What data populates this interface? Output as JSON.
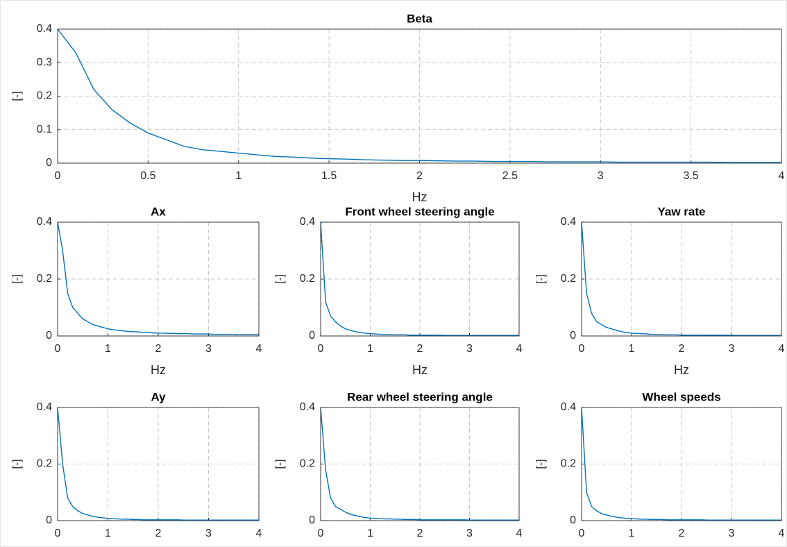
{
  "chart_data": [
    {
      "type": "line",
      "title": "Beta",
      "x_label": "Hz",
      "y_label": "[-]",
      "color": "#0072bd",
      "grid": true,
      "xlim": [
        0,
        4
      ],
      "ylim": [
        0,
        0.4
      ],
      "xticks": [
        0,
        0.5,
        1,
        1.5,
        2,
        2.5,
        3,
        3.5,
        4
      ],
      "yticks": [
        0,
        0.1,
        0.2,
        0.3,
        0.4
      ],
      "x": [
        0,
        0.1,
        0.2,
        0.3,
        0.4,
        0.5,
        0.6,
        0.7,
        0.8,
        0.9,
        1,
        1.1,
        1.2,
        1.3,
        1.4,
        1.5,
        1.6,
        1.7,
        1.8,
        1.9,
        2,
        2.1,
        2.2,
        2.3,
        2.4,
        2.5,
        2.6,
        2.7,
        2.8,
        2.9,
        3,
        3.1,
        3.2,
        3.3,
        3.4,
        3.5,
        3.6,
        3.7,
        3.8,
        3.9,
        4
      ],
      "values": [
        0.4,
        0.33,
        0.22,
        0.16,
        0.12,
        0.09,
        0.07,
        0.05,
        0.04,
        0.035,
        0.03,
        0.025,
        0.02,
        0.018,
        0.015,
        0.013,
        0.012,
        0.01,
        0.009,
        0.008,
        0.008,
        0.007,
        0.006,
        0.006,
        0.005,
        0.005,
        0.005,
        0.004,
        0.004,
        0.004,
        0.004,
        0.003,
        0.003,
        0.003,
        0.003,
        0.003,
        0.003,
        0.002,
        0.002,
        0.002,
        0.002
      ]
    },
    {
      "type": "line",
      "title": "Ax",
      "x_label": "Hz",
      "y_label": "[-]",
      "color": "#0072bd",
      "grid": true,
      "xlim": [
        0,
        4
      ],
      "ylim": [
        0,
        0.4
      ],
      "xticks": [
        0,
        1,
        2,
        3,
        4
      ],
      "yticks": [
        0,
        0.2,
        0.4
      ],
      "x": [
        0,
        0.1,
        0.2,
        0.3,
        0.4,
        0.5,
        0.6,
        0.7,
        0.8,
        0.9,
        1,
        1.1,
        1.2,
        1.3,
        1.4,
        1.5,
        1.6,
        1.7,
        1.8,
        1.9,
        2,
        2.1,
        2.2,
        2.3,
        2.4,
        2.5,
        2.6,
        2.7,
        2.8,
        2.9,
        3,
        3.1,
        3.2,
        3.3,
        3.4,
        3.5,
        3.6,
        3.7,
        3.8,
        3.9,
        4
      ],
      "values": [
        0.4,
        0.3,
        0.15,
        0.1,
        0.08,
        0.06,
        0.05,
        0.04,
        0.035,
        0.03,
        0.025,
        0.022,
        0.02,
        0.018,
        0.016,
        0.015,
        0.014,
        0.013,
        0.012,
        0.011,
        0.01,
        0.01,
        0.009,
        0.009,
        0.008,
        0.008,
        0.008,
        0.007,
        0.007,
        0.007,
        0.007,
        0.006,
        0.006,
        0.006,
        0.006,
        0.006,
        0.005,
        0.005,
        0.005,
        0.005,
        0.005
      ]
    },
    {
      "type": "line",
      "title": "Front wheel steering angle",
      "x_label": "Hz",
      "y_label": "[-]",
      "color": "#0072bd",
      "grid": true,
      "xlim": [
        0,
        4
      ],
      "ylim": [
        0,
        0.4
      ],
      "xticks": [
        0,
        1,
        2,
        3,
        4
      ],
      "yticks": [
        0,
        0.2,
        0.4
      ],
      "x": [
        0,
        0.1,
        0.2,
        0.3,
        0.4,
        0.5,
        0.6,
        0.7,
        0.8,
        0.9,
        1,
        1.1,
        1.2,
        1.3,
        1.4,
        1.5,
        1.6,
        1.7,
        1.8,
        1.9,
        2,
        2.1,
        2.2,
        2.3,
        2.4,
        2.5,
        2.6,
        2.7,
        2.8,
        2.9,
        3,
        3.1,
        3.2,
        3.3,
        3.4,
        3.5,
        3.6,
        3.7,
        3.8,
        3.9,
        4
      ],
      "values": [
        0.4,
        0.12,
        0.07,
        0.05,
        0.035,
        0.025,
        0.02,
        0.015,
        0.012,
        0.01,
        0.008,
        0.007,
        0.006,
        0.005,
        0.005,
        0.004,
        0.004,
        0.004,
        0.003,
        0.003,
        0.003,
        0.003,
        0.003,
        0.003,
        0.003,
        0.002,
        0.002,
        0.002,
        0.002,
        0.002,
        0.002,
        0.002,
        0.002,
        0.002,
        0.002,
        0.002,
        0.002,
        0.002,
        0.002,
        0.002,
        0.002
      ]
    },
    {
      "type": "line",
      "title": "Yaw rate",
      "x_label": "Hz",
      "y_label": "[-]",
      "color": "#0072bd",
      "grid": true,
      "xlim": [
        0,
        4
      ],
      "ylim": [
        0,
        0.4
      ],
      "xticks": [
        0,
        1,
        2,
        3,
        4
      ],
      "yticks": [
        0,
        0.2,
        0.4
      ],
      "x": [
        0,
        0.1,
        0.2,
        0.3,
        0.4,
        0.5,
        0.6,
        0.7,
        0.8,
        0.9,
        1,
        1.1,
        1.2,
        1.3,
        1.4,
        1.5,
        1.6,
        1.7,
        1.8,
        1.9,
        2,
        2.1,
        2.2,
        2.3,
        2.4,
        2.5,
        2.6,
        2.7,
        2.8,
        2.9,
        3,
        3.1,
        3.2,
        3.3,
        3.4,
        3.5,
        3.6,
        3.7,
        3.8,
        3.9,
        4
      ],
      "values": [
        0.4,
        0.15,
        0.08,
        0.05,
        0.04,
        0.03,
        0.025,
        0.02,
        0.015,
        0.012,
        0.01,
        0.009,
        0.008,
        0.007,
        0.006,
        0.005,
        0.005,
        0.004,
        0.004,
        0.004,
        0.003,
        0.003,
        0.003,
        0.003,
        0.003,
        0.003,
        0.003,
        0.003,
        0.003,
        0.003,
        0.002,
        0.002,
        0.002,
        0.002,
        0.002,
        0.002,
        0.002,
        0.002,
        0.002,
        0.002,
        0.002
      ]
    },
    {
      "type": "line",
      "title": "Ay",
      "y_label": "[-]",
      "color": "#0072bd",
      "grid": true,
      "xlim": [
        0,
        4
      ],
      "ylim": [
        0,
        0.4
      ],
      "xticks": [
        0,
        1,
        2,
        3,
        4
      ],
      "yticks": [
        0,
        0.2,
        0.4
      ],
      "x": [
        0,
        0.1,
        0.2,
        0.3,
        0.4,
        0.5,
        0.6,
        0.7,
        0.8,
        0.9,
        1,
        1.1,
        1.2,
        1.3,
        1.4,
        1.5,
        1.6,
        1.7,
        1.8,
        1.9,
        2,
        2.1,
        2.2,
        2.3,
        2.4,
        2.5,
        2.6,
        2.7,
        2.8,
        2.9,
        3,
        3.1,
        3.2,
        3.3,
        3.4,
        3.5,
        3.6,
        3.7,
        3.8,
        3.9,
        4
      ],
      "values": [
        0.4,
        0.2,
        0.08,
        0.05,
        0.035,
        0.025,
        0.02,
        0.015,
        0.012,
        0.01,
        0.008,
        0.007,
        0.006,
        0.005,
        0.005,
        0.004,
        0.004,
        0.003,
        0.003,
        0.003,
        0.003,
        0.003,
        0.003,
        0.003,
        0.003,
        0.002,
        0.002,
        0.002,
        0.002,
        0.002,
        0.002,
        0.002,
        0.002,
        0.002,
        0.002,
        0.002,
        0.002,
        0.002,
        0.002,
        0.002,
        0.002
      ]
    },
    {
      "type": "line",
      "title": "Rear wheel steering angle",
      "y_label": "[-]",
      "color": "#0072bd",
      "grid": true,
      "xlim": [
        0,
        4
      ],
      "ylim": [
        0,
        0.4
      ],
      "xticks": [
        0,
        1,
        2,
        3,
        4
      ],
      "yticks": [
        0,
        0.2,
        0.4
      ],
      "x": [
        0,
        0.1,
        0.2,
        0.3,
        0.4,
        0.5,
        0.6,
        0.7,
        0.8,
        0.9,
        1,
        1.1,
        1.2,
        1.3,
        1.4,
        1.5,
        1.6,
        1.7,
        1.8,
        1.9,
        2,
        2.1,
        2.2,
        2.3,
        2.4,
        2.5,
        2.6,
        2.7,
        2.8,
        2.9,
        3,
        3.1,
        3.2,
        3.3,
        3.4,
        3.5,
        3.6,
        3.7,
        3.8,
        3.9,
        4
      ],
      "values": [
        0.4,
        0.18,
        0.08,
        0.05,
        0.04,
        0.03,
        0.022,
        0.018,
        0.014,
        0.011,
        0.009,
        0.008,
        0.007,
        0.006,
        0.006,
        0.005,
        0.005,
        0.004,
        0.004,
        0.004,
        0.003,
        0.003,
        0.003,
        0.003,
        0.003,
        0.003,
        0.003,
        0.003,
        0.003,
        0.003,
        0.002,
        0.002,
        0.002,
        0.002,
        0.002,
        0.002,
        0.002,
        0.002,
        0.002,
        0.002,
        0.002
      ]
    },
    {
      "type": "line",
      "title": "Wheel speeds",
      "y_label": "[-]",
      "color": "#0072bd",
      "grid": true,
      "xlim": [
        0,
        4
      ],
      "ylim": [
        0,
        0.4
      ],
      "xticks": [
        0,
        1,
        2,
        3,
        4
      ],
      "yticks": [
        0,
        0.2,
        0.4
      ],
      "x": [
        0,
        0.1,
        0.2,
        0.3,
        0.4,
        0.5,
        0.6,
        0.7,
        0.8,
        0.9,
        1,
        1.1,
        1.2,
        1.3,
        1.4,
        1.5,
        1.6,
        1.7,
        1.8,
        1.9,
        2,
        2.1,
        2.2,
        2.3,
        2.4,
        2.5,
        2.6,
        2.7,
        2.8,
        2.9,
        3,
        3.1,
        3.2,
        3.3,
        3.4,
        3.5,
        3.6,
        3.7,
        3.8,
        3.9,
        4
      ],
      "values": [
        0.4,
        0.1,
        0.05,
        0.035,
        0.025,
        0.02,
        0.015,
        0.012,
        0.01,
        0.008,
        0.007,
        0.006,
        0.005,
        0.005,
        0.004,
        0.004,
        0.004,
        0.003,
        0.003,
        0.003,
        0.003,
        0.003,
        0.003,
        0.003,
        0.003,
        0.002,
        0.002,
        0.002,
        0.002,
        0.002,
        0.002,
        0.002,
        0.002,
        0.002,
        0.002,
        0.002,
        0.002,
        0.002,
        0.002,
        0.002,
        0.002
      ]
    }
  ]
}
